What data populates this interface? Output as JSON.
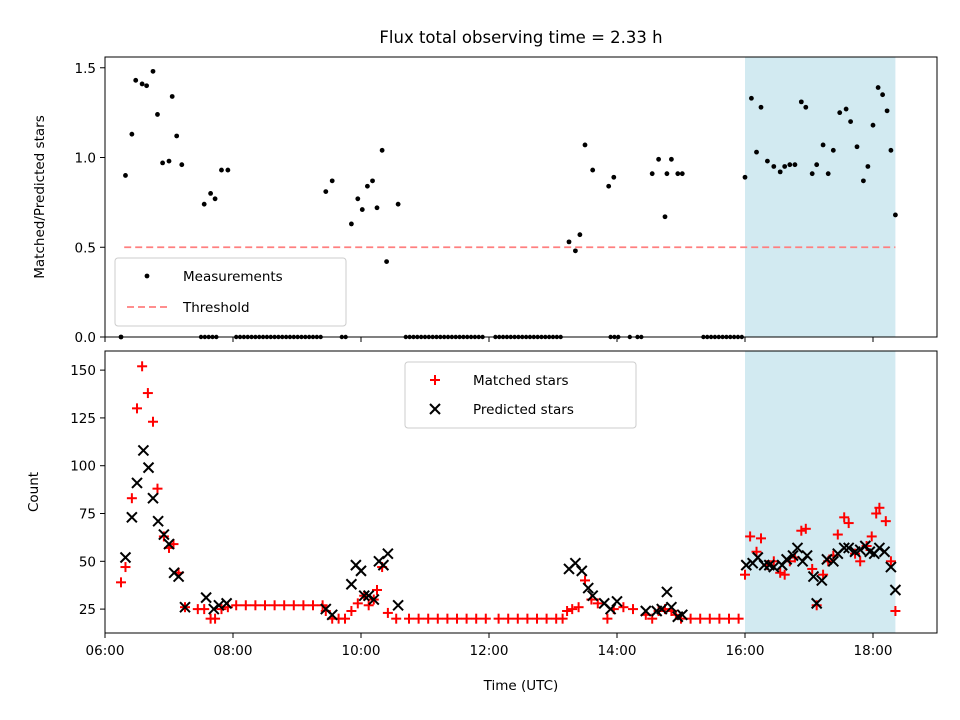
{
  "chart_data": [
    {
      "type": "scatter",
      "title": "Flux total observing time = 2.33 h",
      "xlabel": "",
      "ylabel": "Matched/Predicted stars",
      "xlim": [
        6.0,
        19.0
      ],
      "ylim": [
        0,
        1.56
      ],
      "yticks": [
        0.0,
        0.5,
        1.0,
        1.5
      ],
      "ytick_labels": [
        "0.0",
        "0.5",
        "1.0",
        "1.5"
      ],
      "shaded_region": {
        "x": [
          16.0,
          18.35
        ],
        "color": "#add8e6"
      },
      "threshold": {
        "name": "Threshold",
        "y": 0.5,
        "x": [
          6.3,
          18.35
        ],
        "color": "#ff7f7f"
      },
      "legend": {
        "placement": "lower-left",
        "entries": [
          "Measurements",
          "Threshold"
        ]
      },
      "series": [
        {
          "name": "Measurements",
          "color": "#000000",
          "points": [
            [
              6.25,
              0
            ],
            [
              6.32,
              0.9
            ],
            [
              6.42,
              1.13
            ],
            [
              6.48,
              1.43
            ],
            [
              6.58,
              1.41
            ],
            [
              6.65,
              1.4
            ],
            [
              6.75,
              1.48
            ],
            [
              6.82,
              1.24
            ],
            [
              6.9,
              0.97
            ],
            [
              7.0,
              0.98
            ],
            [
              7.05,
              1.34
            ],
            [
              7.12,
              1.12
            ],
            [
              7.2,
              0.96
            ],
            [
              7.55,
              0.74
            ],
            [
              7.65,
              0.8
            ],
            [
              7.72,
              0.77
            ],
            [
              7.82,
              0.93
            ],
            [
              7.92,
              0.93
            ],
            [
              9.45,
              0.81
            ],
            [
              9.55,
              0.87
            ],
            [
              9.85,
              0.63
            ],
            [
              9.95,
              0.77
            ],
            [
              10.02,
              0.71
            ],
            [
              10.1,
              0.84
            ],
            [
              10.18,
              0.87
            ],
            [
              10.25,
              0.72
            ],
            [
              10.33,
              1.04
            ],
            [
              10.4,
              0.42
            ],
            [
              10.58,
              0.74
            ],
            [
              13.25,
              0.53
            ],
            [
              13.35,
              0.48
            ],
            [
              13.42,
              0.57
            ],
            [
              13.5,
              1.07
            ],
            [
              13.62,
              0.93
            ],
            [
              13.87,
              0.84
            ],
            [
              13.95,
              0.89
            ],
            [
              14.55,
              0.91
            ],
            [
              14.78,
              0.91
            ],
            [
              14.65,
              0.99
            ],
            [
              14.75,
              0.67
            ],
            [
              14.85,
              0.99
            ],
            [
              14.95,
              0.91
            ],
            [
              15.02,
              0.91
            ],
            [
              16.0,
              0.89
            ],
            [
              16.1,
              1.33
            ],
            [
              16.18,
              1.03
            ],
            [
              16.25,
              1.28
            ],
            [
              16.35,
              0.98
            ],
            [
              16.45,
              0.95
            ],
            [
              16.55,
              0.92
            ],
            [
              16.62,
              0.95
            ],
            [
              16.7,
              0.96
            ],
            [
              16.78,
              0.96
            ],
            [
              16.88,
              1.31
            ],
            [
              16.95,
              1.28
            ],
            [
              17.05,
              0.91
            ],
            [
              17.12,
              0.96
            ],
            [
              17.22,
              1.07
            ],
            [
              17.3,
              0.91
            ],
            [
              17.38,
              1.04
            ],
            [
              17.48,
              1.25
            ],
            [
              17.58,
              1.27
            ],
            [
              17.65,
              1.2
            ],
            [
              17.75,
              1.06
            ],
            [
              17.85,
              0.87
            ],
            [
              17.92,
              0.95
            ],
            [
              18.0,
              1.18
            ],
            [
              18.08,
              1.39
            ],
            [
              18.15,
              1.35
            ],
            [
              18.22,
              1.26
            ],
            [
              18.28,
              1.04
            ],
            [
              18.35,
              0.68
            ]
          ]
        }
      ],
      "zero_runs": [
        [
          7.5,
          7.75
        ],
        [
          8.05,
          9.42
        ],
        [
          9.7,
          9.8
        ],
        [
          10.7,
          11.95
        ],
        [
          12.1,
          13.15
        ],
        [
          13.9,
          14.05
        ],
        [
          14.2,
          14.25
        ],
        [
          14.32,
          14.42
        ],
        [
          15.35,
          16.0
        ]
      ]
    },
    {
      "type": "scatter",
      "title": "",
      "xlabel": "Time (UTC)",
      "ylabel": "Count",
      "xlim": [
        6.0,
        19.0
      ],
      "ylim": [
        12.5,
        160
      ],
      "xticks": [
        6,
        8,
        10,
        12,
        14,
        16,
        18
      ],
      "xtick_labels": [
        "06:00",
        "08:00",
        "10:00",
        "12:00",
        "14:00",
        "16:00",
        "18:00"
      ],
      "yticks": [
        25,
        50,
        75,
        100,
        125,
        150
      ],
      "ytick_labels": [
        "25",
        "50",
        "75",
        "100",
        "125",
        "150"
      ],
      "shaded_region": {
        "x": [
          16.0,
          18.35
        ],
        "color": "#add8e6"
      },
      "legend": {
        "placement": "top-center",
        "entries": [
          "Matched stars",
          "Predicted stars"
        ]
      },
      "series": [
        {
          "name": "Matched stars",
          "marker": "plus",
          "color": "#ff0000",
          "points": [
            [
              6.25,
              39
            ],
            [
              6.32,
              47
            ],
            [
              6.42,
              83
            ],
            [
              6.5,
              130
            ],
            [
              6.58,
              152
            ],
            [
              6.67,
              138
            ],
            [
              6.75,
              123
            ],
            [
              6.82,
              88
            ],
            [
              6.92,
              63
            ],
            [
              7.0,
              57
            ],
            [
              7.07,
              59
            ],
            [
              7.15,
              44
            ],
            [
              7.25,
              26
            ],
            [
              7.45,
              25
            ],
            [
              7.55,
              25
            ],
            [
              7.65,
              20
            ],
            [
              7.72,
              20
            ],
            [
              7.82,
              25
            ],
            [
              7.92,
              26
            ],
            [
              8.05,
              27
            ],
            [
              8.2,
              27
            ],
            [
              8.35,
              27
            ],
            [
              8.5,
              27
            ],
            [
              8.65,
              27
            ],
            [
              8.8,
              27
            ],
            [
              8.95,
              27
            ],
            [
              9.1,
              27
            ],
            [
              9.25,
              27
            ],
            [
              9.4,
              27
            ],
            [
              9.45,
              24
            ],
            [
              9.55,
              20
            ],
            [
              9.65,
              20
            ],
            [
              9.75,
              20
            ],
            [
              9.85,
              24
            ],
            [
              9.95,
              28
            ],
            [
              10.05,
              32
            ],
            [
              10.12,
              27
            ],
            [
              10.2,
              30
            ],
            [
              10.25,
              35
            ],
            [
              10.33,
              47
            ],
            [
              10.42,
              23
            ],
            [
              10.55,
              20
            ],
            [
              10.75,
              20
            ],
            [
              10.9,
              20
            ],
            [
              11.05,
              20
            ],
            [
              11.2,
              20
            ],
            [
              11.35,
              20
            ],
            [
              11.5,
              20
            ],
            [
              11.65,
              20
            ],
            [
              11.8,
              20
            ],
            [
              11.95,
              20
            ],
            [
              12.15,
              20
            ],
            [
              12.3,
              20
            ],
            [
              12.45,
              20
            ],
            [
              12.6,
              20
            ],
            [
              12.75,
              20
            ],
            [
              12.9,
              20
            ],
            [
              13.05,
              20
            ],
            [
              13.15,
              20
            ],
            [
              13.22,
              24
            ],
            [
              13.3,
              25
            ],
            [
              13.4,
              26
            ],
            [
              13.5,
              40
            ],
            [
              13.6,
              30
            ],
            [
              13.7,
              28
            ],
            [
              13.85,
              20
            ],
            [
              13.95,
              25
            ],
            [
              14.1,
              26
            ],
            [
              14.25,
              25
            ],
            [
              14.45,
              22
            ],
            [
              14.55,
              20
            ],
            [
              14.65,
              24
            ],
            [
              14.75,
              25
            ],
            [
              14.85,
              24
            ],
            [
              14.92,
              22
            ],
            [
              15.0,
              20
            ],
            [
              15.15,
              20
            ],
            [
              15.3,
              20
            ],
            [
              15.45,
              20
            ],
            [
              15.6,
              20
            ],
            [
              15.75,
              20
            ],
            [
              15.9,
              20
            ],
            [
              16.0,
              43
            ],
            [
              16.08,
              63
            ],
            [
              16.18,
              55
            ],
            [
              16.25,
              62
            ],
            [
              16.35,
              48
            ],
            [
              16.45,
              50
            ],
            [
              16.55,
              44
            ],
            [
              16.62,
              43
            ],
            [
              16.7,
              50
            ],
            [
              16.78,
              52
            ],
            [
              16.88,
              66
            ],
            [
              16.95,
              67
            ],
            [
              17.05,
              46
            ],
            [
              17.12,
              27
            ],
            [
              17.22,
              43
            ],
            [
              17.3,
              50
            ],
            [
              17.38,
              53
            ],
            [
              17.45,
              64
            ],
            [
              17.55,
              73
            ],
            [
              17.62,
              70
            ],
            [
              17.72,
              54
            ],
            [
              17.8,
              50
            ],
            [
              17.9,
              58
            ],
            [
              17.98,
              63
            ],
            [
              18.05,
              75
            ],
            [
              18.1,
              78
            ],
            [
              18.2,
              71
            ],
            [
              18.28,
              50
            ],
            [
              18.35,
              24
            ]
          ]
        },
        {
          "name": "Predicted stars",
          "marker": "x",
          "color": "#000000",
          "points": [
            [
              6.32,
              52
            ],
            [
              6.42,
              73
            ],
            [
              6.5,
              91
            ],
            [
              6.6,
              108
            ],
            [
              6.68,
              99
            ],
            [
              6.75,
              83
            ],
            [
              6.83,
              71
            ],
            [
              6.92,
              64
            ],
            [
              7.0,
              59
            ],
            [
              7.08,
              44
            ],
            [
              7.15,
              42
            ],
            [
              7.25,
              26
            ],
            [
              7.58,
              31
            ],
            [
              7.7,
              25
            ],
            [
              7.78,
              27
            ],
            [
              7.9,
              28
            ],
            [
              9.45,
              25
            ],
            [
              9.55,
              22
            ],
            [
              9.85,
              38
            ],
            [
              9.92,
              48
            ],
            [
              10.0,
              45
            ],
            [
              10.05,
              32
            ],
            [
              10.12,
              32
            ],
            [
              10.2,
              30
            ],
            [
              10.28,
              50
            ],
            [
              10.35,
              48
            ],
            [
              10.42,
              54
            ],
            [
              10.58,
              27
            ],
            [
              13.25,
              46
            ],
            [
              13.35,
              49
            ],
            [
              13.45,
              45
            ],
            [
              13.55,
              36
            ],
            [
              13.62,
              32
            ],
            [
              13.8,
              28
            ],
            [
              13.9,
              25
            ],
            [
              14.0,
              29
            ],
            [
              14.45,
              24
            ],
            [
              14.62,
              24
            ],
            [
              14.7,
              25
            ],
            [
              14.78,
              34
            ],
            [
              14.85,
              26
            ],
            [
              14.95,
              21
            ],
            [
              15.02,
              22
            ],
            [
              16.02,
              48
            ],
            [
              16.12,
              49
            ],
            [
              16.2,
              52
            ],
            [
              16.3,
              48
            ],
            [
              16.38,
              48
            ],
            [
              16.45,
              47
            ],
            [
              16.58,
              48
            ],
            [
              16.65,
              51
            ],
            [
              16.75,
              53
            ],
            [
              16.82,
              57
            ],
            [
              16.9,
              50
            ],
            [
              16.97,
              53
            ],
            [
              17.07,
              42
            ],
            [
              17.12,
              28
            ],
            [
              17.2,
              40
            ],
            [
              17.28,
              51
            ],
            [
              17.38,
              50
            ],
            [
              17.45,
              54
            ],
            [
              17.55,
              57
            ],
            [
              17.62,
              57
            ],
            [
              17.72,
              55
            ],
            [
              17.8,
              56
            ],
            [
              17.88,
              58
            ],
            [
              17.95,
              55
            ],
            [
              18.02,
              54
            ],
            [
              18.1,
              57
            ],
            [
              18.18,
              55
            ],
            [
              18.28,
              47
            ],
            [
              18.35,
              35
            ]
          ]
        }
      ]
    }
  ]
}
